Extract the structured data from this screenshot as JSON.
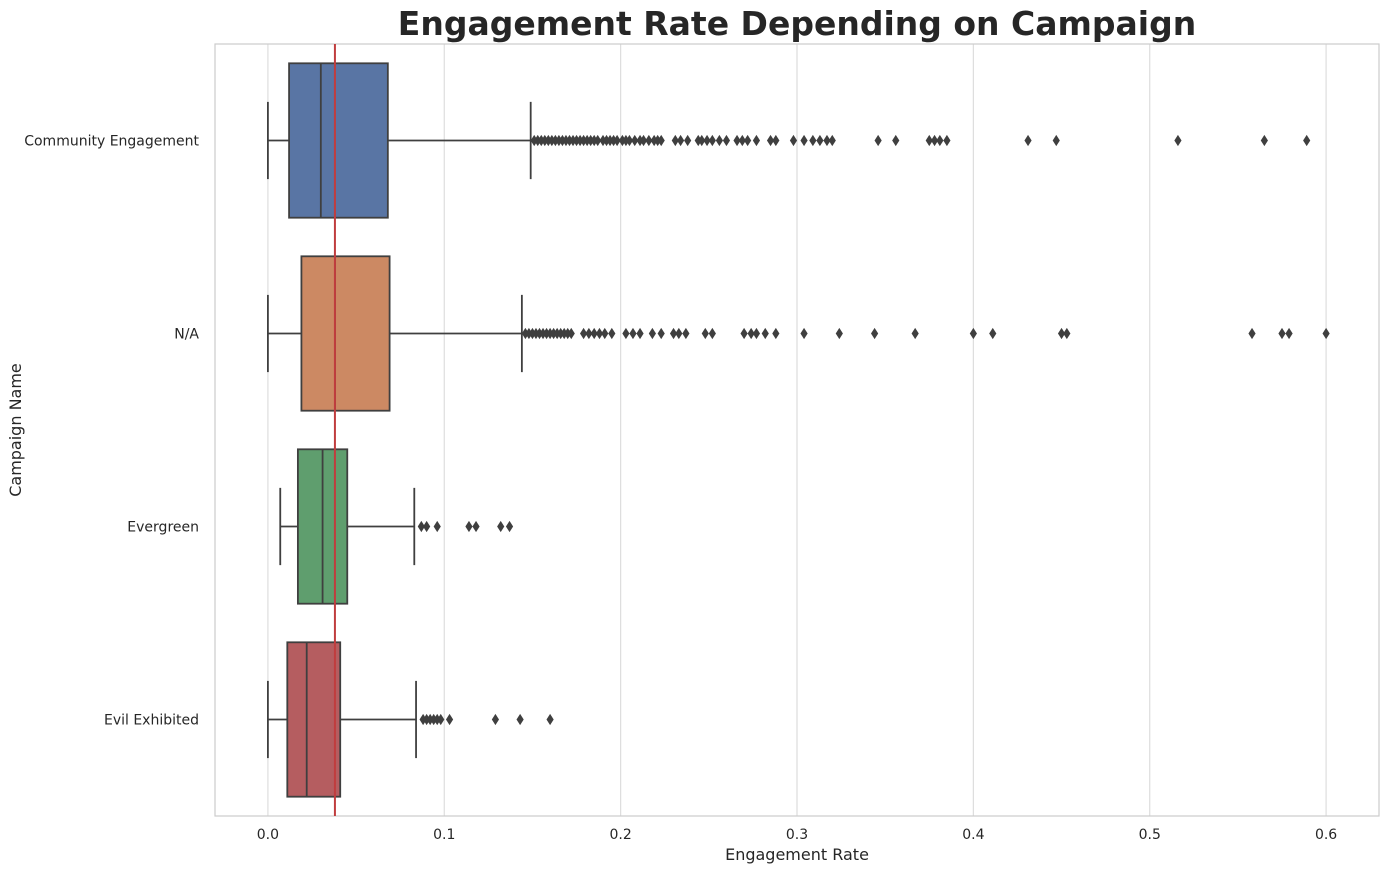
{
  "chart_data": {
    "type": "box",
    "orientation": "horizontal",
    "title": "Engagement Rate Depending on Campaign",
    "xlabel": "Engagement Rate",
    "ylabel": "Campaign Name",
    "xlim": [
      -0.03,
      0.63
    ],
    "xticks": [
      0.0,
      0.1,
      0.2,
      0.3,
      0.4,
      0.5,
      0.6
    ],
    "xtick_labels": [
      "0.0",
      "0.1",
      "0.2",
      "0.3",
      "0.4",
      "0.5",
      "0.6"
    ],
    "grid": "vertical",
    "reference_line": {
      "x": 0.038,
      "color": "#c03d3e"
    },
    "categories": [
      "Community Engagement",
      "N/A",
      "Evergreen",
      "Evil Exhibited"
    ],
    "series": [
      {
        "name": "Community Engagement",
        "color": "#5975a4",
        "whisker_low": 0.0,
        "q1": 0.012,
        "median": 0.03,
        "q3": 0.068,
        "whisker_high": 0.149,
        "outliers": [
          0.151,
          0.153,
          0.155,
          0.157,
          0.159,
          0.161,
          0.163,
          0.165,
          0.167,
          0.169,
          0.171,
          0.173,
          0.175,
          0.177,
          0.179,
          0.181,
          0.183,
          0.185,
          0.187,
          0.19,
          0.192,
          0.194,
          0.196,
          0.198,
          0.201,
          0.203,
          0.205,
          0.208,
          0.211,
          0.213,
          0.216,
          0.219,
          0.221,
          0.223,
          0.231,
          0.234,
          0.238,
          0.244,
          0.246,
          0.249,
          0.252,
          0.256,
          0.26,
          0.266,
          0.269,
          0.272,
          0.277,
          0.285,
          0.288,
          0.298,
          0.304,
          0.309,
          0.313,
          0.317,
          0.32,
          0.346,
          0.356,
          0.375,
          0.378,
          0.381,
          0.385,
          0.431,
          0.447,
          0.516,
          0.565,
          0.589
        ]
      },
      {
        "name": "N/A",
        "color": "#cc8963",
        "whisker_low": 0.0,
        "q1": 0.019,
        "median": 0.038,
        "q3": 0.069,
        "whisker_high": 0.144,
        "outliers": [
          0.146,
          0.148,
          0.15,
          0.152,
          0.154,
          0.156,
          0.158,
          0.16,
          0.162,
          0.164,
          0.166,
          0.168,
          0.17,
          0.172,
          0.179,
          0.182,
          0.185,
          0.188,
          0.191,
          0.195,
          0.203,
          0.207,
          0.211,
          0.218,
          0.223,
          0.23,
          0.233,
          0.237,
          0.248,
          0.252,
          0.27,
          0.274,
          0.277,
          0.282,
          0.288,
          0.304,
          0.324,
          0.344,
          0.367,
          0.4,
          0.411,
          0.45,
          0.453,
          0.558,
          0.575,
          0.579,
          0.6
        ]
      },
      {
        "name": "Evergreen",
        "color": "#5f9e6e",
        "whisker_low": 0.007,
        "q1": 0.017,
        "median": 0.031,
        "q3": 0.045,
        "whisker_high": 0.083,
        "outliers": [
          0.087,
          0.09,
          0.096,
          0.114,
          0.118,
          0.132,
          0.137
        ]
      },
      {
        "name": "Evil Exhibited",
        "color": "#b55d60",
        "whisker_low": 0.0,
        "q1": 0.011,
        "median": 0.022,
        "q3": 0.041,
        "whisker_high": 0.084,
        "outliers": [
          0.088,
          0.09,
          0.092,
          0.094,
          0.096,
          0.098,
          0.103,
          0.129,
          0.143,
          0.16
        ]
      }
    ]
  }
}
